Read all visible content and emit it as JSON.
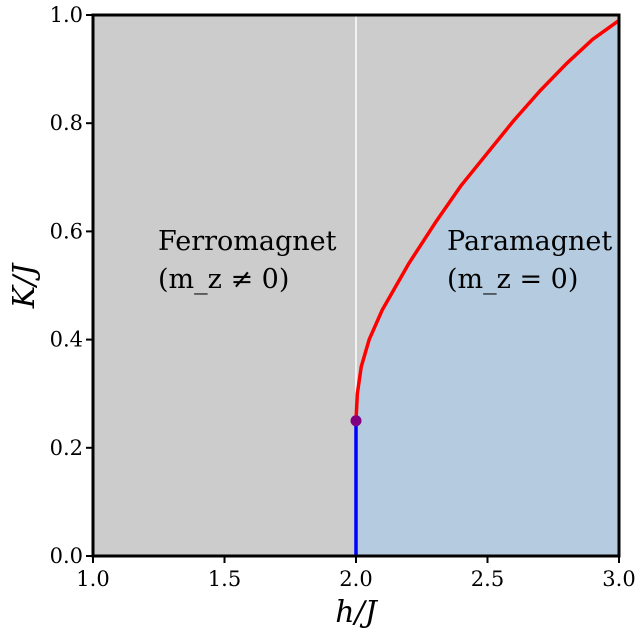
{
  "chart_data": {
    "type": "line",
    "xlabel": "h/J",
    "ylabel": "K/J",
    "xlim": [
      1.0,
      3.0
    ],
    "ylim": [
      0.0,
      1.0
    ],
    "xticks": [
      "1.0",
      "1.5",
      "2.0",
      "2.5",
      "3.0"
    ],
    "yticks": [
      "0.0",
      "0.2",
      "0.4",
      "0.6",
      "0.8",
      "1.0"
    ],
    "grid": false,
    "regions": [
      {
        "name": "Ferromagnet",
        "condition": "(m_z ≠ 0)",
        "color": "#cccccc"
      },
      {
        "name": "Paramagnet",
        "condition": "(m_z = 0)",
        "color": "#b5cce0"
      }
    ],
    "series": [
      {
        "color": "#ff0000",
        "x": [
          2.0,
          2.005,
          2.02,
          2.05,
          2.1,
          2.2,
          2.3,
          2.4,
          2.5,
          2.6,
          2.7,
          2.8,
          2.9,
          3.0
        ],
        "y": [
          0.25,
          0.3,
          0.35,
          0.4,
          0.455,
          0.54,
          0.615,
          0.685,
          0.745,
          0.805,
          0.86,
          0.91,
          0.955,
          0.99
        ]
      },
      {
        "color": "#0000ff",
        "x": [
          2.0,
          2.0
        ],
        "y": [
          0.0,
          0.25
        ]
      },
      {
        "color": "#ffffff",
        "x": [
          2.0,
          2.0
        ],
        "y": [
          0.25,
          1.0
        ]
      }
    ],
    "points": [
      {
        "x": 2.0,
        "y": 0.25,
        "color": "#800080"
      }
    ]
  }
}
